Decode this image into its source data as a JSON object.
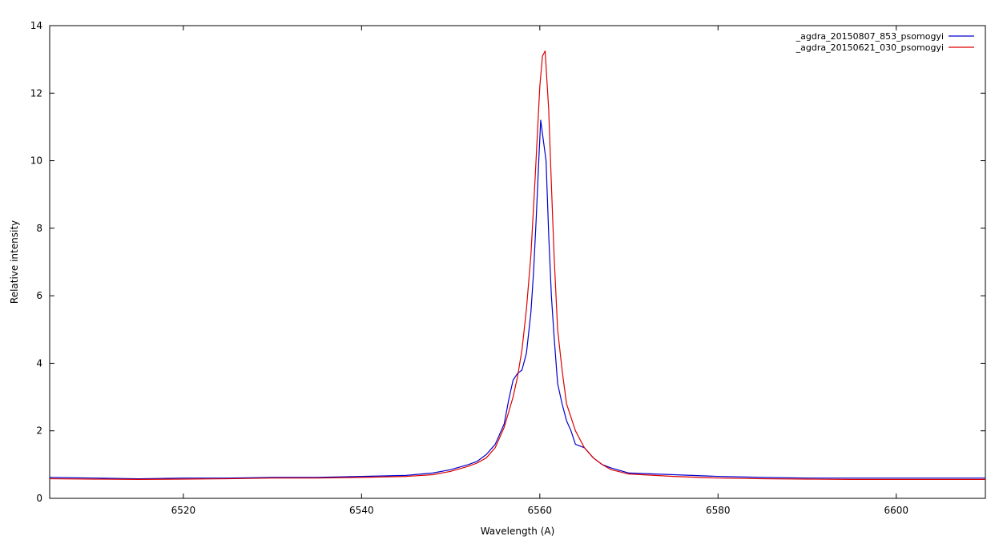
{
  "chart_data": {
    "type": "line",
    "title": "",
    "xlabel": "Wavelength (A)",
    "ylabel": "Relative intensity",
    "xlim": [
      6505,
      6610
    ],
    "ylim": [
      0,
      14
    ],
    "xticks": [
      6520,
      6540,
      6560,
      6580,
      6600
    ],
    "yticks": [
      0,
      2,
      4,
      6,
      8,
      10,
      12,
      14
    ],
    "grid": false,
    "legend_position": "top-right",
    "series": [
      {
        "name": "_agdra_20150807_853_psomogyi",
        "color": "#0000cc",
        "x": [
          6505,
          6510,
          6515,
          6520,
          6525,
          6530,
          6535,
          6540,
          6545,
          6548,
          6550,
          6552,
          6553,
          6554,
          6555,
          6556,
          6556.5,
          6557,
          6557.5,
          6558,
          6558.5,
          6559,
          6559.3,
          6559.6,
          6559.9,
          6560.1,
          6560.4,
          6560.7,
          6561,
          6561.3,
          6561.6,
          6562,
          6562.5,
          6563,
          6563.5,
          6564,
          6565,
          6566,
          6567,
          6568,
          6570,
          6575,
          6580,
          6585,
          6590,
          6595,
          6600,
          6605,
          6610
        ],
        "y": [
          0.62,
          0.6,
          0.58,
          0.6,
          0.6,
          0.62,
          0.62,
          0.65,
          0.68,
          0.75,
          0.85,
          1.0,
          1.1,
          1.3,
          1.6,
          2.2,
          2.9,
          3.5,
          3.7,
          3.8,
          4.3,
          5.5,
          6.7,
          8.3,
          10.1,
          11.2,
          10.6,
          10.0,
          7.8,
          6.0,
          4.8,
          3.4,
          2.8,
          2.3,
          2.0,
          1.6,
          1.5,
          1.2,
          1.0,
          0.9,
          0.75,
          0.7,
          0.65,
          0.62,
          0.6,
          0.6,
          0.6,
          0.6,
          0.6
        ]
      },
      {
        "name": "_agdra_20150621_030_psomogyi",
        "color": "#dd0000",
        "x": [
          6505,
          6510,
          6515,
          6520,
          6525,
          6530,
          6535,
          6540,
          6545,
          6548,
          6550,
          6552,
          6553,
          6554,
          6555,
          6556,
          6557,
          6557.5,
          6558,
          6558.5,
          6559,
          6559.5,
          6560,
          6560.3,
          6560.6,
          6561,
          6561.3,
          6561.6,
          6562,
          6562.5,
          6563,
          6564,
          6565,
          6566,
          6567,
          6568,
          6570,
          6575,
          6580,
          6585,
          6590,
          6595,
          6600,
          6605,
          6610
        ],
        "y": [
          0.58,
          0.57,
          0.56,
          0.57,
          0.58,
          0.6,
          0.6,
          0.62,
          0.65,
          0.7,
          0.8,
          0.95,
          1.05,
          1.2,
          1.5,
          2.1,
          3.0,
          3.6,
          4.4,
          5.6,
          7.2,
          9.6,
          12.2,
          13.1,
          13.25,
          11.5,
          9.3,
          7.2,
          5.0,
          3.8,
          2.8,
          2.0,
          1.5,
          1.2,
          1.0,
          0.85,
          0.72,
          0.65,
          0.6,
          0.58,
          0.57,
          0.56,
          0.56,
          0.56,
          0.56
        ]
      }
    ]
  }
}
